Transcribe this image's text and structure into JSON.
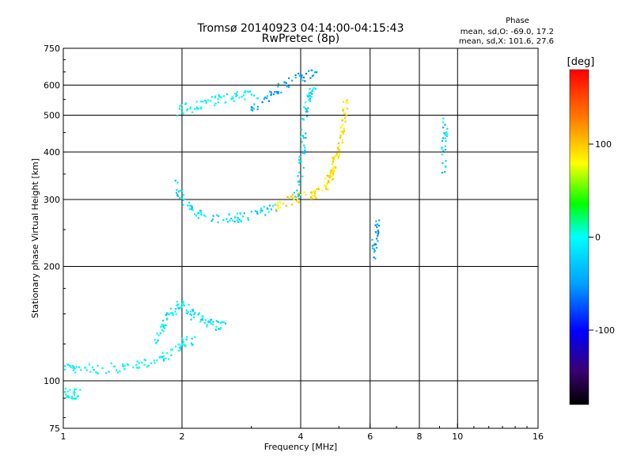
{
  "chart_data": {
    "type": "scatter",
    "title": "Tromsø 20140923 04:14:00-04:15:43",
    "subtitle": "RwPretec (8p)",
    "xlabel": "Frequency [MHz]",
    "ylabel": "Stationary phase Virtual Height [km]",
    "xscale": "log",
    "yscale": "log",
    "xlim": [
      1,
      16
    ],
    "ylim": [
      75,
      750
    ],
    "xticks": [
      1,
      2,
      4,
      6,
      8,
      10,
      16
    ],
    "xtick_labels": [
      "1",
      "2",
      "4",
      "6",
      "8",
      "10",
      "16"
    ],
    "yticks": [
      75,
      100,
      200,
      300,
      400,
      500,
      600,
      750
    ],
    "ytick_labels": [
      "75",
      "100",
      "200",
      "300",
      "400",
      "500",
      "600",
      "750"
    ],
    "grid": true,
    "phase_box": {
      "title": "Phase",
      "line1": "mean, sd,O: -69.0, 17.2",
      "line2": "mean, sd,X: 101.6, 27.6"
    },
    "colorbar": {
      "label": "[deg]",
      "range": [
        -180,
        180
      ],
      "ticks": [
        100,
        0,
        -100
      ],
      "tick_labels": [
        "100",
        "0",
        "-100"
      ],
      "colormap": "rainbow"
    },
    "traces": [
      {
        "x": [
          1.0,
          1.1,
          1.3,
          1.5,
          1.7,
          1.85,
          2.0,
          2.2
        ],
        "y": [
          108,
          107,
          108,
          109,
          112,
          118,
          125,
          130
        ],
        "phase": -60
      },
      {
        "x": [
          1.7,
          1.8,
          1.9,
          2.0,
          2.1,
          2.25,
          2.4,
          2.6
        ],
        "y": [
          125,
          140,
          152,
          160,
          150,
          145,
          140,
          142
        ],
        "phase": -65
      },
      {
        "x": [
          1.0,
          1.05,
          1.1
        ],
        "y": [
          93,
          92,
          93
        ],
        "phase": -50
      },
      {
        "x": [
          1.9,
          2.0,
          2.2,
          2.5,
          2.8,
          3.1,
          3.5
        ],
        "y": [
          330,
          300,
          275,
          267,
          268,
          275,
          288
        ],
        "phase": -70
      },
      {
        "x": [
          3.5,
          3.8,
          4.1,
          4.4,
          4.7,
          4.9
        ],
        "y": [
          290,
          300,
          305,
          310,
          330,
          370
        ],
        "phase": 110
      },
      {
        "x": [
          3.9,
          4.0,
          4.05,
          4.1,
          4.2,
          4.4
        ],
        "y": [
          300,
          350,
          420,
          500,
          560,
          590
        ],
        "phase": -70
      },
      {
        "x": [
          4.6,
          4.8,
          4.95,
          5.1,
          5.15,
          5.2
        ],
        "y": [
          330,
          360,
          400,
          440,
          490,
          540
        ],
        "phase": 110
      },
      {
        "x": [
          3.0,
          3.3,
          3.6,
          4.0,
          4.4
        ],
        "y": [
          520,
          560,
          600,
          630,
          640
        ],
        "phase": -90
      },
      {
        "x": [
          1.9,
          2.1,
          2.3,
          2.5,
          2.8,
          3.1
        ],
        "y": [
          510,
          525,
          540,
          550,
          560,
          570
        ],
        "phase": -60
      },
      {
        "x": [
          6.1,
          6.2,
          6.3
        ],
        "y": [
          210,
          240,
          260
        ],
        "phase": -90
      },
      {
        "x": [
          9.2,
          9.25,
          9.3
        ],
        "y": [
          350,
          420,
          480
        ],
        "phase": -75
      }
    ]
  }
}
